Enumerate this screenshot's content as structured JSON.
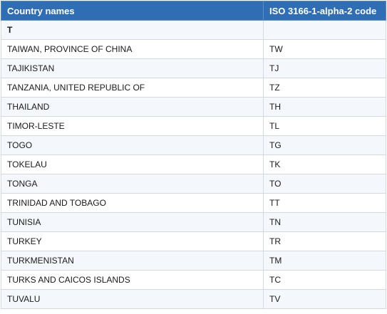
{
  "table": {
    "headers": [
      "Country names",
      "ISO 3166-1-alpha-2 code"
    ],
    "section_letter": "T",
    "rows": [
      {
        "name": "TAIWAN, PROVINCE OF CHINA",
        "code": "TW"
      },
      {
        "name": "TAJIKISTAN",
        "code": "TJ"
      },
      {
        "name": "TANZANIA, UNITED REPUBLIC OF",
        "code": "TZ"
      },
      {
        "name": "THAILAND",
        "code": "TH"
      },
      {
        "name": "TIMOR-LESTE",
        "code": "TL"
      },
      {
        "name": "TOGO",
        "code": "TG"
      },
      {
        "name": "TOKELAU",
        "code": "TK"
      },
      {
        "name": "TONGA",
        "code": "TO"
      },
      {
        "name": "TRINIDAD AND TOBAGO",
        "code": "TT"
      },
      {
        "name": "TUNISIA",
        "code": "TN"
      },
      {
        "name": "TURKEY",
        "code": "TR"
      },
      {
        "name": "TURKMENISTAN",
        "code": "TM"
      },
      {
        "name": "TURKS AND CAICOS ISLANDS",
        "code": "TC"
      },
      {
        "name": "TUVALU",
        "code": "TV"
      }
    ]
  },
  "colors": {
    "header_bg": "#2f6db5",
    "header_text": "#ffffff",
    "row_alt_bg": "#f4f7fb",
    "border": "#d3d9e0"
  }
}
